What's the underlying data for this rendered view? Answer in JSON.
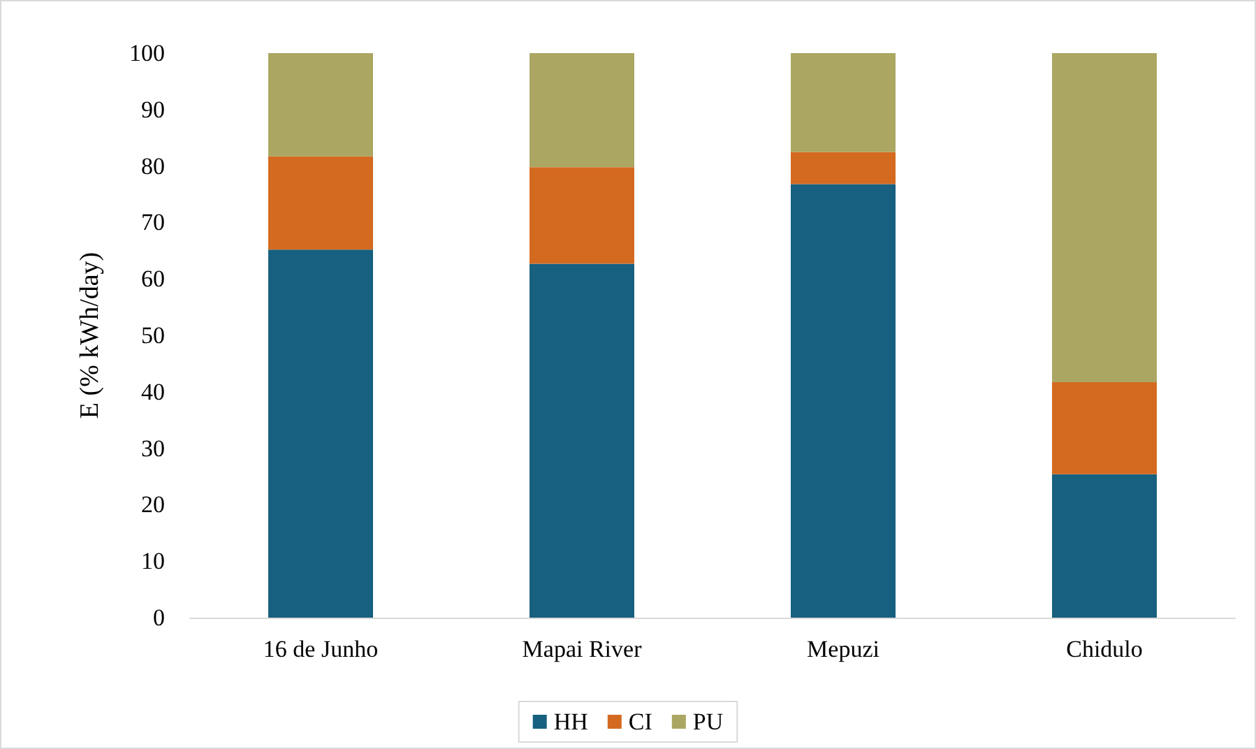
{
  "chart_data": {
    "type": "bar",
    "stacked": true,
    "ylabel": "E (% kWh/day)",
    "categories": [
      "16 de Junho",
      "Mapai River",
      "Mepuzi",
      "Chidulo"
    ],
    "series": [
      {
        "name": "HH",
        "color": "#17607f",
        "values": [
          65.2,
          62.7,
          76.8,
          25.4
        ]
      },
      {
        "name": "CI",
        "color": "#d46a20",
        "values": [
          16.5,
          17.1,
          5.7,
          16.3
        ]
      },
      {
        "name": "PU",
        "color": "#aba763",
        "values": [
          18.3,
          20.2,
          17.5,
          58.3
        ]
      }
    ],
    "ylim": [
      0,
      100
    ],
    "yticks": [
      0,
      10,
      20,
      30,
      40,
      50,
      60,
      70,
      80,
      90,
      100
    ],
    "grid": false,
    "legend": "bottom"
  }
}
